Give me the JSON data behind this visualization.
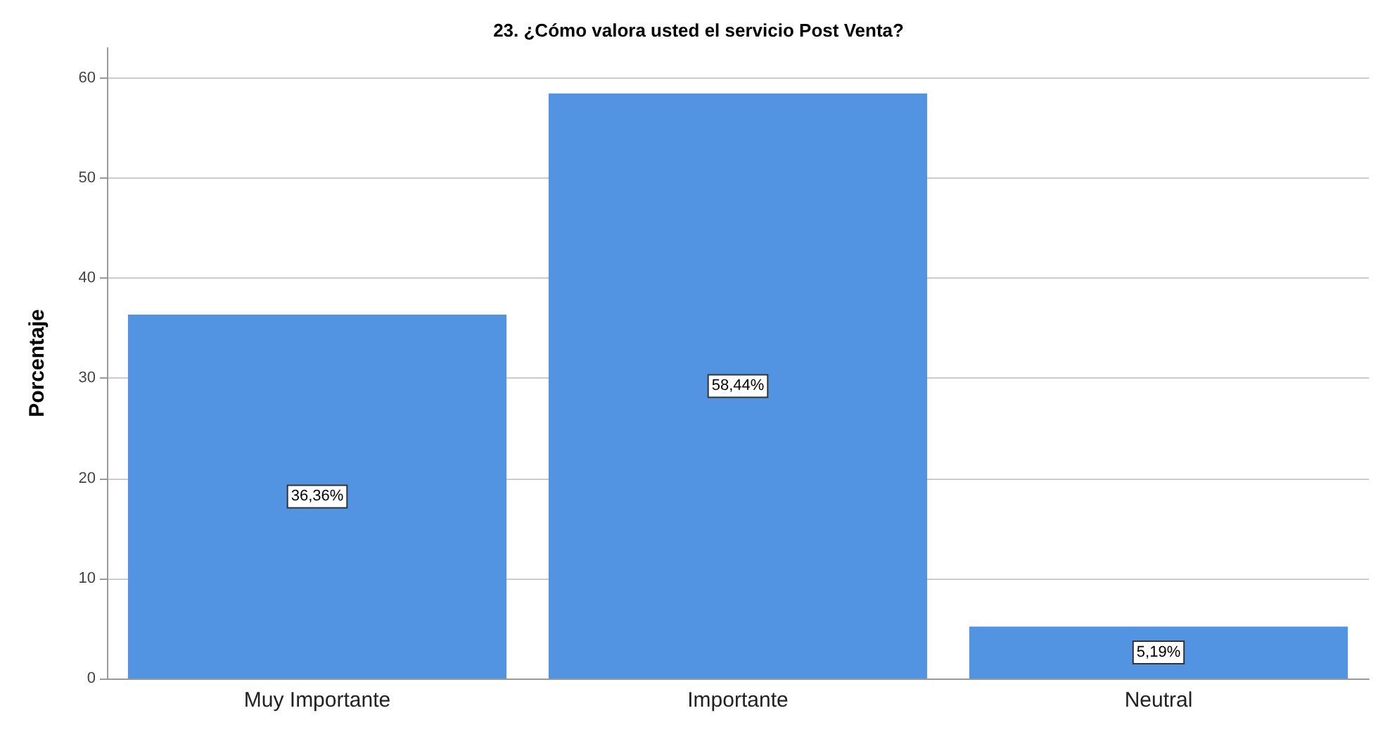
{
  "chart_data": {
    "type": "bar",
    "title": "23. ¿Cómo valora usted el servicio Post Venta?",
    "ylabel": "Porcentaje",
    "categories": [
      "Muy Importante",
      "Importante",
      "Neutral"
    ],
    "values": [
      36.36,
      58.44,
      5.19
    ],
    "color": "#5294e2",
    "value_labels": [
      "36,36%",
      "58,44%",
      "5,19%"
    ],
    "ylim": [
      0,
      63
    ],
    "yticks": [
      0,
      10,
      20,
      30,
      40,
      50,
      60
    ],
    "grid": "y"
  }
}
